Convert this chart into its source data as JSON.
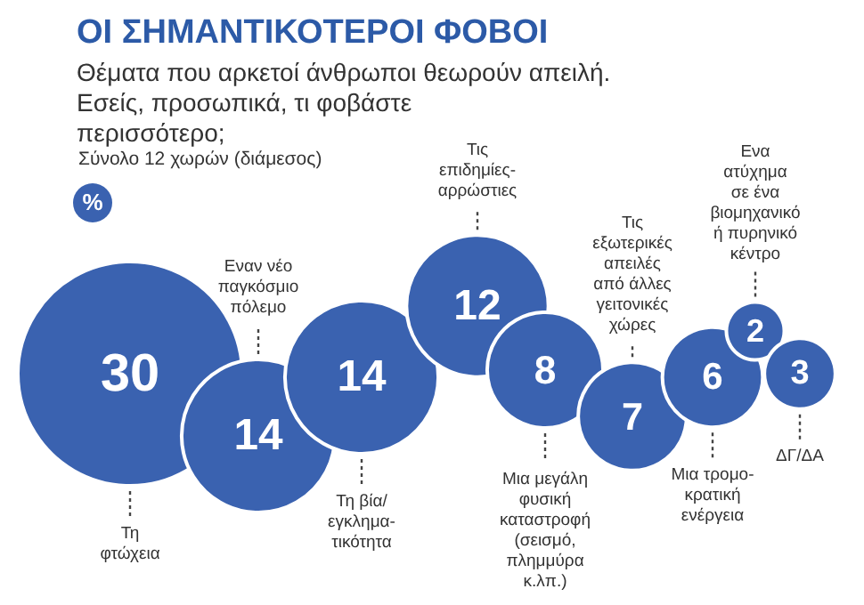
{
  "chart_data": {
    "type": "other",
    "title": "ΟΙ ΣΗΜΑΝΤΙΚΟΤΕΡΟΙ ΦΟΒΟΙ",
    "subtitle": "Θέματα που αρκετοί άνθρωποι θεωρούν απειλή.\nΕσείς, προσωπικά, τι φοβάστε\nπερισσότερο;",
    "annotations": [
      "Σύνολο 12 χωρών (διάμεσος)"
    ],
    "ylabel": "%",
    "categories": [
      "Τη\nφτώχεια",
      "Εναν νέο\nπαγκόσμιο\nπόλεμο",
      "Τη βία/\nεγκλημα-\nτικότητα",
      "Τις\nεπιδημίες-\nαρρώστιες",
      "Μια μεγάλη\nφυσική\nκαταστροφή\n(σεισμό,\nπλημμύρα\nκ.λπ.)",
      "Τις\nεξωτερικές\nαπειλές\nαπό άλλες\nγειτονικές\nχώρες",
      "Μια τρομο-\nκρατική\nενέργεια",
      "Ενα\nατύχημα\nσε ένα\nβιομηχανικό\nή πυρηνικό\nκέντρο",
      "ΔΓ/ΔΑ"
    ],
    "values": [
      30,
      14,
      14,
      12,
      8,
      7,
      6,
      2,
      3
    ],
    "color": "#3a62b0",
    "data_labels": true
  }
}
